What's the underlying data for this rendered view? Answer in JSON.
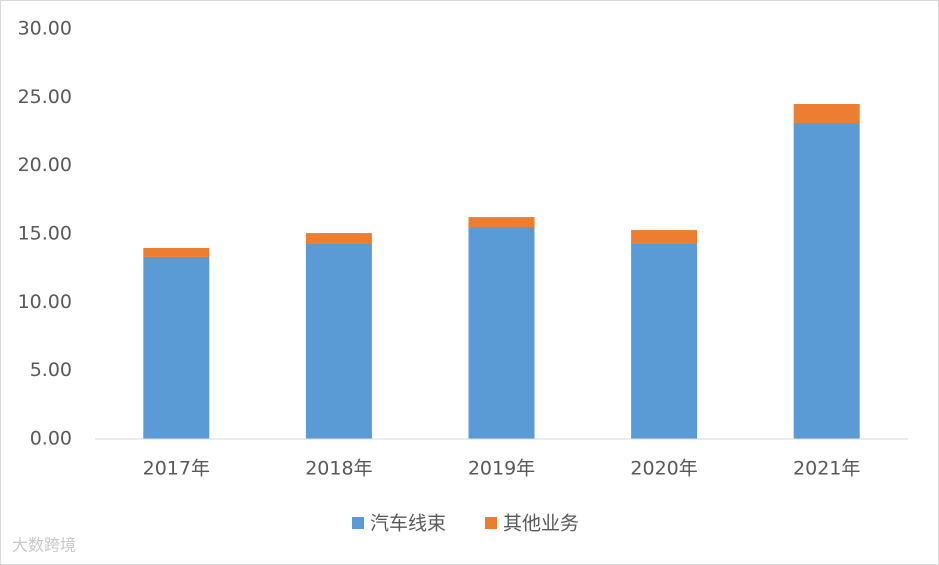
{
  "chart_data": {
    "type": "stacked_bar",
    "categories": [
      "2017年",
      "2018年",
      "2019年",
      "2020年",
      "2021年"
    ],
    "series": [
      {
        "name": "汽车线束",
        "color": "#5b9bd5",
        "values": [
          13.32,
          14.27,
          15.51,
          14.27,
          23.12
        ]
      },
      {
        "name": "其他业务",
        "color": "#ed7d31",
        "values": [
          0.66,
          0.8,
          0.73,
          1.02,
          1.39
        ]
      }
    ],
    "ylim": [
      0,
      30
    ],
    "yticks": [
      {
        "value": 0,
        "label": "0.00"
      },
      {
        "value": 5,
        "label": "5.00"
      },
      {
        "value": 10,
        "label": "10.00"
      },
      {
        "value": 15,
        "label": "15.00"
      },
      {
        "value": 20,
        "label": "20.00"
      },
      {
        "value": 25,
        "label": "25.00"
      },
      {
        "value": 30,
        "label": "30.00"
      }
    ],
    "grid": false,
    "legend": "bottom",
    "watermark": "大数跨境"
  }
}
